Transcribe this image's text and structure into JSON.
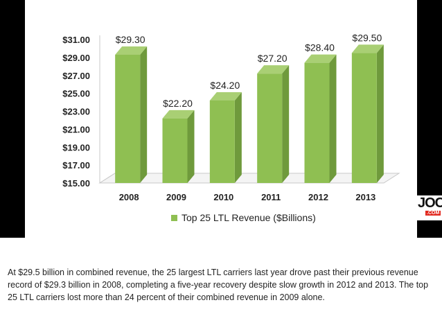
{
  "chart_data": {
    "type": "bar",
    "categories": [
      "2008",
      "2009",
      "2010",
      "2011",
      "2012",
      "2013"
    ],
    "values": [
      29.3,
      22.2,
      24.2,
      27.2,
      28.4,
      29.5
    ],
    "data_labels": [
      "$29.30",
      "$22.20",
      "$24.20",
      "$27.20",
      "$28.40",
      "$29.50"
    ],
    "ylim": [
      15,
      31
    ],
    "y_ticks": [
      "$15.00",
      "$17.00",
      "$19.00",
      "$21.00",
      "$23.00",
      "$25.00",
      "$27.00",
      "$29.00",
      "$31.00"
    ],
    "legend": "Top 25 LTL Revenue ($Billions)",
    "legend_position": "bottom",
    "bar_color": "#8fbf52",
    "grid": false
  },
  "logo": {
    "main": "JOC",
    "sub": ".COM"
  },
  "caption": "At $29.5 billion in combined revenue, the 25 largest LTL carriers last year drove past their previous revenue record of $29.3 billion in 2008, completing a five-year recovery despite slow growth in 2012 and 2013. The top 25 LTL carriers lost more than 24 percent of their combined revenue in 2009 alone."
}
